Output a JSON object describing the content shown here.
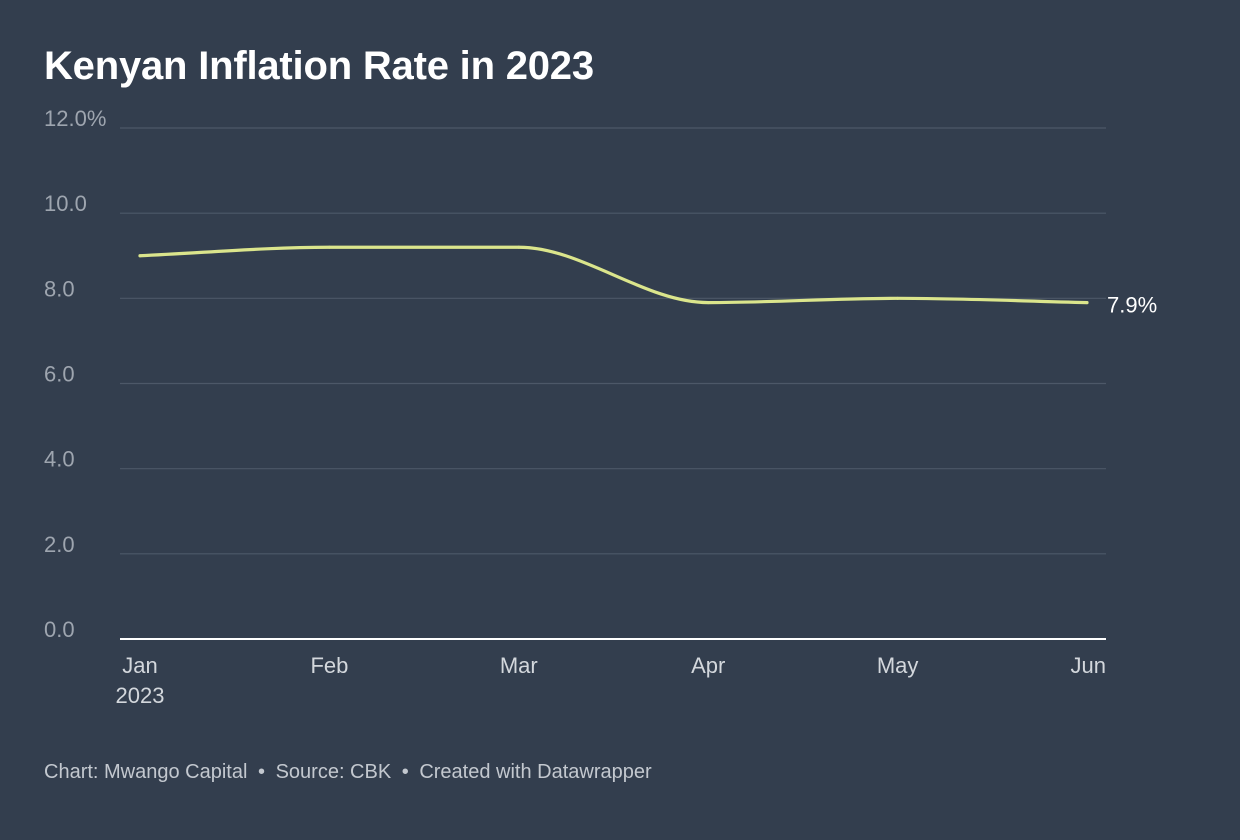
{
  "title": "Kenyan Inflation Rate in 2023",
  "footer": {
    "chart_credit": "Chart: Mwango Capital",
    "source": "Source: CBK",
    "tool": "Created with Datawrapper",
    "separator": "•"
  },
  "colors": {
    "background": "#333e4e",
    "line": "#dbe58c",
    "grid": "#4d5868",
    "baseline": "#ffffff",
    "tick_text": "#9ea5af",
    "x_tick_text": "#d3d7dc",
    "end_label": "#ffffff"
  },
  "chart_data": {
    "type": "line",
    "title": "Kenyan Inflation Rate in 2023",
    "xlabel": "",
    "ylabel": "",
    "x_tick_labels": [
      "Jan",
      "Feb",
      "Mar",
      "Apr",
      "May",
      "Jun"
    ],
    "x_tick_sublabel": "2023",
    "y_tick_labels": [
      "0.0",
      "2.0",
      "4.0",
      "6.0",
      "8.0",
      "10.0",
      "12.0%"
    ],
    "y_ticks": [
      0,
      2,
      4,
      6,
      8,
      10,
      12
    ],
    "ylim": [
      0,
      12
    ],
    "grid": true,
    "series": [
      {
        "x": [
          "2023-01",
          "2023-02",
          "2023-03",
          "2023-04",
          "2023-05",
          "2023-06"
        ],
        "values": [
          9.0,
          9.2,
          9.2,
          7.9,
          8.0,
          7.9
        ]
      }
    ],
    "end_label": "7.9%"
  }
}
